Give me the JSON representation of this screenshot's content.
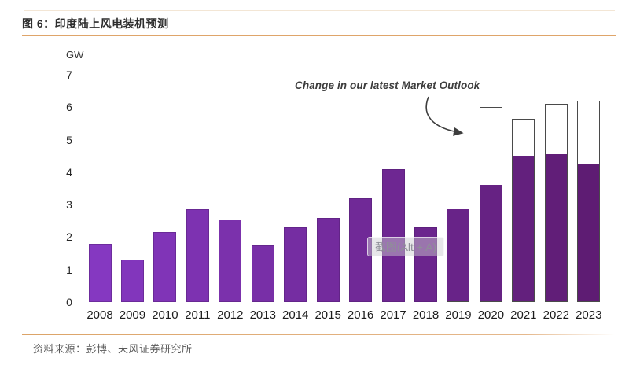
{
  "figure": {
    "title": "图 6：印度陆上风电装机预测"
  },
  "source_text": "资料来源：彭博、天风证券研究所",
  "watermark_label": "截图(Alt + A)",
  "chart_data": {
    "type": "bar",
    "title": "印度陆上风电装机预测",
    "unit_label": "GW",
    "annotation": "Change in our latest Market Outlook",
    "categories": [
      "2008",
      "2009",
      "2010",
      "2011",
      "2012",
      "2013",
      "2014",
      "2015",
      "2016",
      "2017",
      "2018",
      "2019",
      "2020",
      "2021",
      "2022",
      "2023"
    ],
    "series": [
      {
        "name": "solid_bars",
        "values": [
          1.8,
          1.3,
          2.15,
          2.85,
          2.55,
          1.75,
          2.3,
          2.6,
          3.2,
          4.1,
          2.3,
          2.85,
          3.6,
          4.5,
          4.55,
          4.25
        ]
      },
      {
        "name": "outlined_total",
        "values": [
          null,
          null,
          null,
          null,
          null,
          null,
          null,
          null,
          null,
          null,
          null,
          3.35,
          6.0,
          5.65,
          6.1,
          6.2
        ]
      }
    ],
    "ylim": [
      0,
      7
    ],
    "yticks": [
      0,
      1,
      2,
      3,
      4,
      5,
      6,
      7
    ],
    "grid": false,
    "legend": "none",
    "bar_colors": [
      "#8538c1",
      "#8236bc",
      "#8034b7",
      "#7d32b1",
      "#7b31ac",
      "#782fa7",
      "#752da2",
      "#732b9d",
      "#702997",
      "#6e2792",
      "#6b258d",
      "#682388",
      "#662283",
      "#63207d",
      "#611e78",
      "#5e1c73"
    ],
    "outline_color": "#4a4a4a",
    "annotation_color": "#3d3d3d",
    "accent_rule_color": "#dfa56a"
  }
}
